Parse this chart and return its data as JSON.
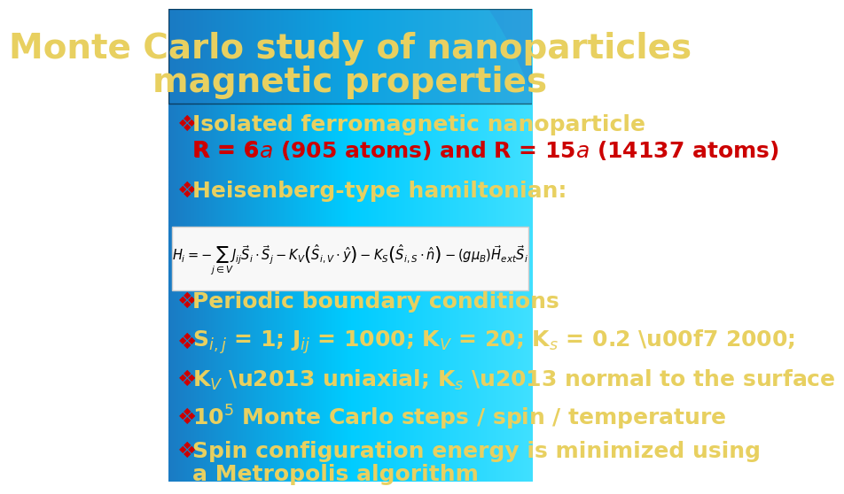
{
  "title_line1": "Monte Carlo study of nanoparticles",
  "title_line2": "magnetic properties",
  "title_color": "#E8D060",
  "title_fontsize": 28,
  "bg_color_left": "#00AAFF",
  "bg_color_right": "#00DDFF",
  "bullet_symbol": "❖",
  "bullet_color": "#CC0000",
  "bullet_fontsize": 18,
  "text_color_yellow": "#E8D060",
  "text_color_red": "#CC0000",
  "text_color_white": "#FFFFFF",
  "formula_box_color": "#F0F0F0",
  "bullets": [
    {
      "lines": [
        {
          "text": " Isolated ferromagnetic nanoparticle",
          "color": "#E8D060",
          "bold": true
        },
        {
          "text": "     R = 6α (905 atoms) and R = 15α (14137 atoms)",
          "color": "#CC0000",
          "bold": true
        }
      ]
    },
    {
      "lines": [
        {
          "text": " Heisenberg-type hamiltonian:",
          "color": "#E8D060",
          "bold": true
        }
      ]
    },
    {
      "lines": [
        {
          "text": " Periodic boundary conditions",
          "color": "#E8D060",
          "bold": true
        }
      ]
    },
    {
      "lines": [
        {
          "text": " Sᵢⱼ = 1; Jᵢⱼ = 1000; Kᵥ = 20; Kₛ = 0.2 ÷ 2000;",
          "color": "#E8D060",
          "bold": true
        }
      ]
    },
    {
      "lines": [
        {
          "text": " Kᵥ – uniaxial; Kₛ – normal to the surface",
          "color": "#E8D060",
          "bold": true
        }
      ]
    },
    {
      "lines": [
        {
          "text": " 10⁵ Monte Carlo steps / spin / temperature",
          "color": "#E8D060",
          "bold": true
        }
      ]
    },
    {
      "lines": [
        {
          "text": " Spin configuration energy is minimized using",
          "color": "#E8D060",
          "bold": true
        },
        {
          "text": "a Metropolis algorithm",
          "color": "#E8D060",
          "bold": true
        }
      ]
    }
  ]
}
